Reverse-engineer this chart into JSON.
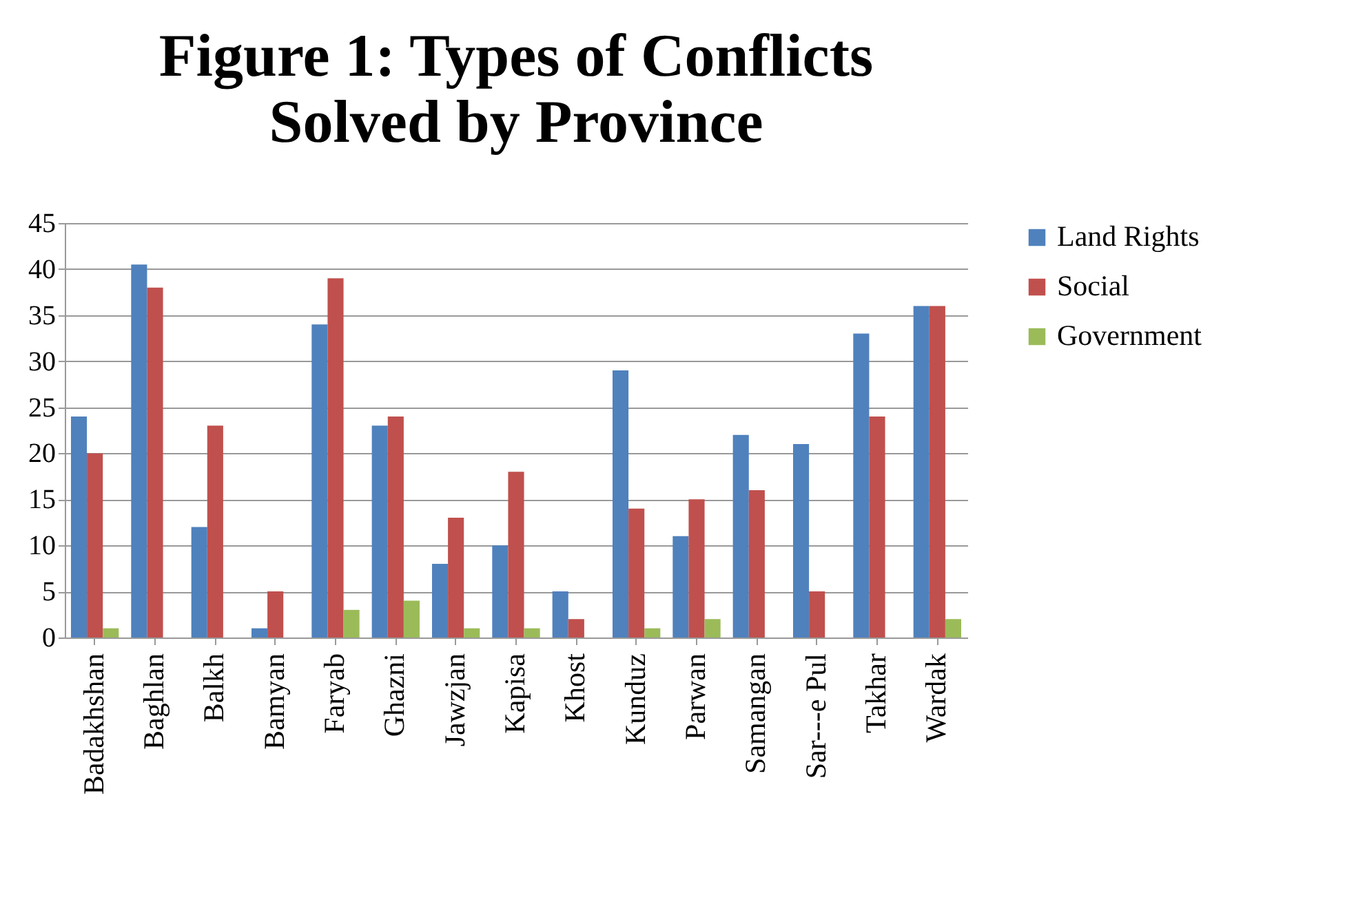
{
  "chart_data": {
    "type": "bar",
    "title": [
      "Figure 1: Types of Conflicts",
      "Solved by Province"
    ],
    "categories": [
      "Badakhshan",
      "Baghlan",
      "Balkh",
      "Bamyan",
      "Faryab",
      "Ghazni",
      "Jawzjan",
      "Kapisa",
      "Khost",
      "Kunduz",
      "Parwan",
      "Samangan",
      "Sar---e Pul",
      "Takhar",
      "Wardak"
    ],
    "series": [
      {
        "name": "Land Rights",
        "color": "#4f81bd",
        "values": [
          24,
          40.5,
          12,
          1,
          34,
          23,
          8,
          10,
          5,
          29,
          11,
          22,
          21,
          33,
          36
        ]
      },
      {
        "name": "Social",
        "color": "#c0504d",
        "values": [
          20,
          38,
          23,
          5,
          39,
          24,
          13,
          18,
          2,
          14,
          15,
          16,
          5,
          24,
          36
        ]
      },
      {
        "name": "Government",
        "color": "#9bbb59",
        "values": [
          1,
          0,
          0,
          0,
          3,
          4,
          1,
          1,
          0,
          1,
          2,
          0,
          0,
          0,
          2
        ]
      }
    ],
    "ylim": [
      0,
      45
    ],
    "yticks": [
      0,
      5,
      10,
      15,
      20,
      25,
      30,
      35,
      40,
      45
    ],
    "grid": "y",
    "legend": "right"
  }
}
